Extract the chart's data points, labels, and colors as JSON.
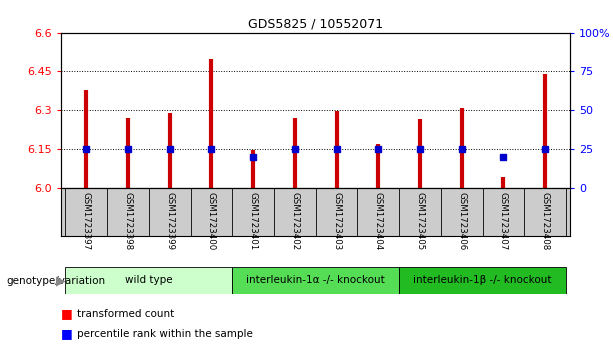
{
  "title": "GDS5825 / 10552071",
  "samples": [
    "GSM1723397",
    "GSM1723398",
    "GSM1723399",
    "GSM1723400",
    "GSM1723401",
    "GSM1723402",
    "GSM1723403",
    "GSM1723404",
    "GSM1723405",
    "GSM1723406",
    "GSM1723407",
    "GSM1723408"
  ],
  "transformed_count": [
    6.38,
    6.27,
    6.29,
    6.5,
    6.145,
    6.27,
    6.295,
    6.17,
    6.265,
    6.31,
    6.04,
    6.44
  ],
  "percentile_rank": [
    25,
    25,
    25,
    25,
    20,
    25,
    25,
    25,
    25,
    25,
    20,
    25
  ],
  "ylim_left": [
    6.0,
    6.6
  ],
  "ylim_right": [
    0,
    100
  ],
  "yticks_left": [
    6.0,
    6.15,
    6.3,
    6.45,
    6.6
  ],
  "yticks_right": [
    0,
    25,
    50,
    75,
    100
  ],
  "bar_color": "#cc0000",
  "dot_color": "#0000cc",
  "genotype_groups": [
    {
      "label": "wild type",
      "start": 0,
      "end": 3,
      "color": "#ccffcc"
    },
    {
      "label": "interleukin-1α -/- knockout",
      "start": 4,
      "end": 7,
      "color": "#55dd55"
    },
    {
      "label": "interleukin-1β -/- knockout",
      "start": 8,
      "end": 11,
      "color": "#22bb22"
    }
  ],
  "genotype_label": "genotype/variation",
  "legend_items": [
    {
      "label": "transformed count",
      "color": "#cc0000"
    },
    {
      "label": "percentile rank within the sample",
      "color": "#0000cc"
    }
  ],
  "base_value": 6.0,
  "xlim": [
    -0.6,
    11.6
  ]
}
